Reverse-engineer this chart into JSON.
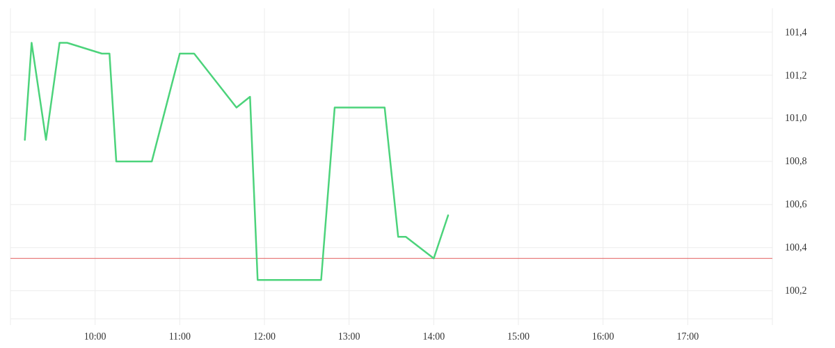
{
  "chart_data": {
    "type": "line",
    "x": [
      9.17,
      9.25,
      9.42,
      9.58,
      9.67,
      10.08,
      10.17,
      10.25,
      10.67,
      11,
      11.17,
      11.67,
      11.83,
      11.92,
      12.67,
      12.83,
      13.42,
      13.58,
      13.67,
      14,
      14.17
    ],
    "series": [
      {
        "color": "#4cd37b",
        "values": [
          100.9,
          101.35,
          100.9,
          101.35,
          101.35,
          101.3,
          101.3,
          100.8,
          100.8,
          101.3,
          101.3,
          101.05,
          101.1,
          100.25,
          100.25,
          101.05,
          101.05,
          100.45,
          100.45,
          100.35,
          100.55
        ]
      }
    ],
    "xlim": [
      9,
      18
    ],
    "xticks": [
      {
        "value": 9,
        "label": null
      },
      {
        "value": 10,
        "label": "10:00"
      },
      {
        "value": 11,
        "label": "11:00"
      },
      {
        "value": 12,
        "label": "12:00"
      },
      {
        "value": 13,
        "label": "13:00"
      },
      {
        "value": 14,
        "label": "14:00"
      },
      {
        "value": 15,
        "label": "15:00"
      },
      {
        "value": 16,
        "label": "16:00"
      },
      {
        "value": 17,
        "label": "17:00"
      },
      {
        "value": 18,
        "label": null
      }
    ],
    "ylim": [
      100.07,
      101.51
    ],
    "yticks": [
      {
        "value": 100.2,
        "label": "100,2"
      },
      {
        "value": 100.4,
        "label": "100,4"
      },
      {
        "value": 100.6,
        "label": "100,6"
      },
      {
        "value": 100.8,
        "label": "100,8"
      },
      {
        "value": 101.0,
        "label": "101,0"
      },
      {
        "value": 101.2,
        "label": "101,2"
      },
      {
        "value": 101.4,
        "label": "101,4"
      }
    ],
    "grid": true,
    "ref_lines": [
      {
        "axis": "y",
        "value": 100.35,
        "color": "#e35d5d"
      }
    ]
  }
}
